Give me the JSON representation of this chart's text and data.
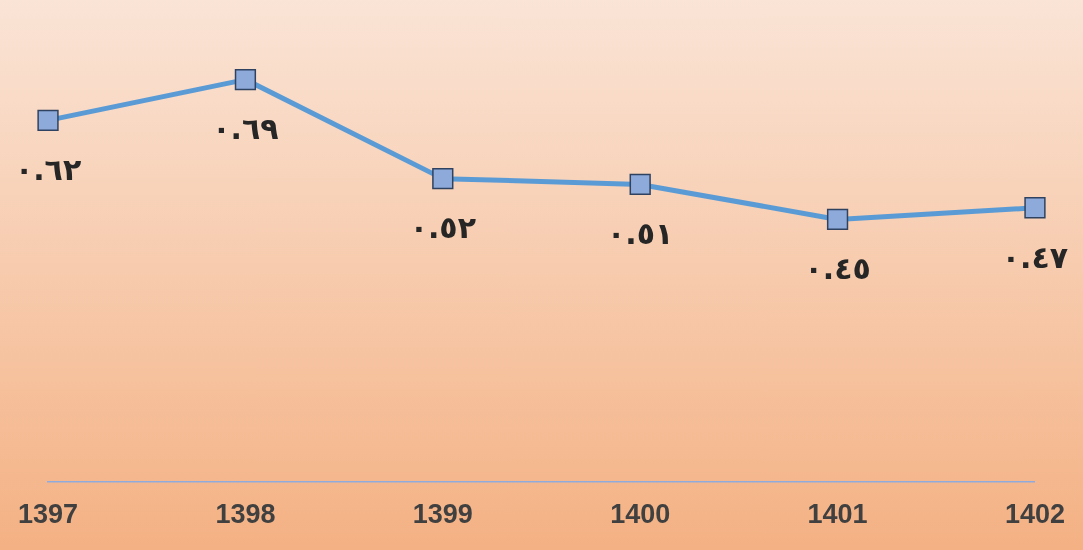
{
  "chart_data": {
    "type": "line",
    "categories": [
      "1397",
      "1398",
      "1399",
      "1400",
      "1401",
      "1402"
    ],
    "series": [
      {
        "color": "#5b9bd5",
        "values": [
          0.62,
          0.69,
          0.52,
          0.51,
          0.45,
          0.47
        ],
        "value_labels": [
          "٠.٦٢",
          "٠.٦٩",
          "٠.٥٢",
          "٠.٥١",
          "٠.٤٥",
          "٠.٤٧"
        ]
      }
    ],
    "tick_labels": "x",
    "grid": false,
    "legend": false,
    "marker": "square",
    "line_style": "solid"
  }
}
